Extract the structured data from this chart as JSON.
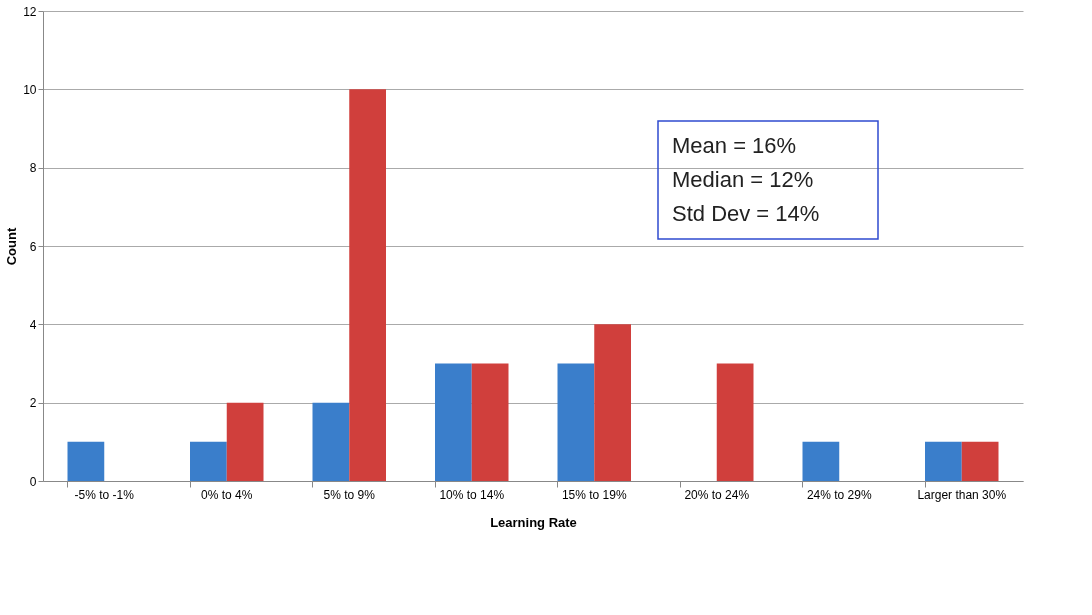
{
  "chart_data": {
    "type": "bar",
    "xlabel": "Learning Rate",
    "ylabel": "Count",
    "categories": [
      "-5% to -1%",
      "0% to 4%",
      "5% to 9%",
      "10% to 14%",
      "15% to 19%",
      "20% to 24%",
      "24% to 29%",
      "Larger than 30%"
    ],
    "series": [
      {
        "color": "#3a7ecb",
        "values": [
          1,
          1,
          2,
          3,
          3,
          0,
          1,
          1
        ]
      },
      {
        "color": "#d03f3c",
        "values": [
          0,
          2,
          10,
          3,
          4,
          3,
          0,
          1
        ]
      }
    ],
    "ylim": [
      0,
      12
    ],
    "yticks": [
      0,
      2,
      4,
      6,
      8,
      10,
      12
    ],
    "grid": "y",
    "legend": false,
    "annotations": [
      "Mean = 16%",
      "Median = 12%",
      "Std Dev = 14%"
    ]
  }
}
